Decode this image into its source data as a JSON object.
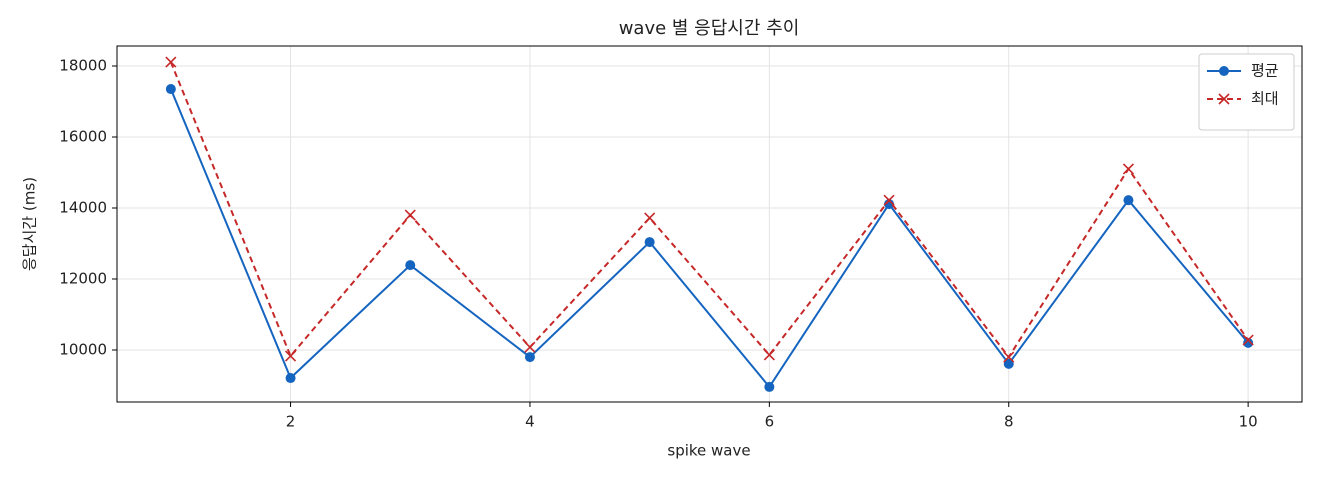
{
  "chart_data": {
    "type": "line",
    "title": "wave 별 응답시간 추이",
    "x_label": "spike wave",
    "y_label": "응답시간 (ms)",
    "x": [
      1,
      2,
      3,
      4,
      5,
      6,
      7,
      8,
      9,
      10
    ],
    "series": [
      {
        "name": "평균",
        "color": "#1565c0",
        "marker": "circle",
        "dashed": false,
        "values": [
          17350,
          9210,
          12390,
          9800,
          13040,
          8960,
          14110,
          9610,
          14220,
          10200
        ]
      },
      {
        "name": "최대",
        "color": "#c62828",
        "marker": "x",
        "dashed": true,
        "values": [
          18110,
          9830,
          13800,
          10080,
          13720,
          9860,
          14220,
          9800,
          15100,
          10280
        ]
      }
    ],
    "xlim": [
      0.55,
      10.45
    ],
    "xticks": [
      2,
      4,
      6,
      8,
      10
    ],
    "ylim": [
      8535,
      18563
    ],
    "yticks": [
      10000,
      12000,
      14000,
      16000,
      18000
    ],
    "grid": true,
    "legend": "upper right"
  }
}
